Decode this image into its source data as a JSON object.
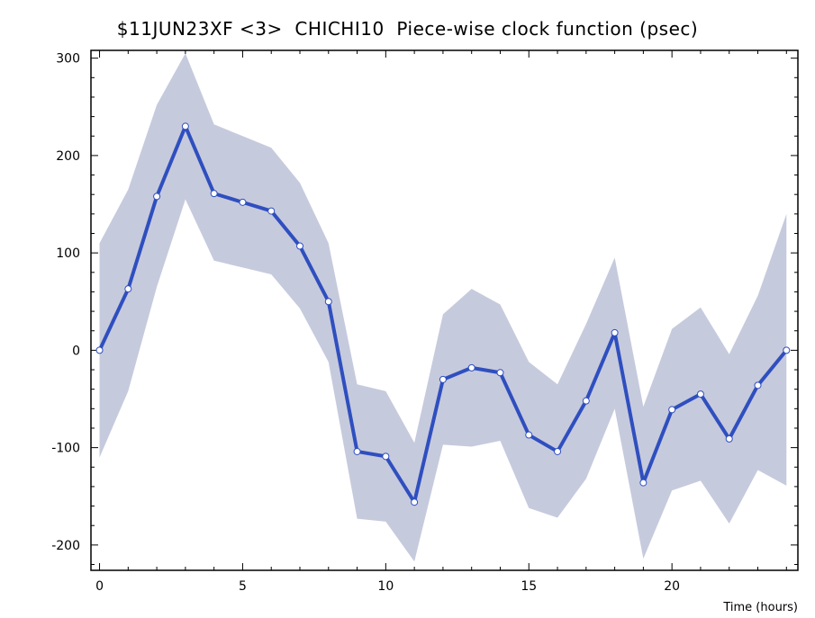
{
  "chart_data": {
    "type": "line",
    "title": "$11JUN23XF <3>  CHICHI10  Piece-wise clock function (psec)",
    "xlabel": "Time (hours)",
    "ylabel": "",
    "xlim": [
      -0.3,
      24.4
    ],
    "ylim": [
      -226,
      308
    ],
    "xticks": [
      0,
      5,
      10,
      15,
      20
    ],
    "yticks": [
      -200,
      -100,
      0,
      100,
      200,
      300
    ],
    "grid": false,
    "x": [
      0,
      1,
      2,
      3,
      4,
      5,
      6,
      7,
      8,
      9,
      10,
      11,
      12,
      13,
      14,
      15,
      16,
      17,
      18,
      19,
      20,
      21,
      22,
      23,
      24
    ],
    "series": [
      {
        "values": [
          0,
          63,
          158,
          230,
          161,
          152,
          143,
          107,
          50,
          -104,
          -109,
          -156,
          -30,
          -18,
          -23,
          -87,
          -104,
          -52,
          18,
          -136,
          -61,
          -45,
          -91,
          -36,
          0
        ]
      }
    ],
    "band": {
      "upper": [
        110,
        165,
        252,
        305,
        232,
        220,
        208,
        172,
        110,
        -35,
        -42,
        -95,
        37,
        63,
        47,
        -12,
        -35,
        27,
        95,
        -58,
        22,
        44,
        -4,
        56,
        140
      ],
      "lower": [
        -110,
        -42,
        65,
        155,
        92,
        85,
        78,
        43,
        -12,
        -173,
        -176,
        -217,
        -97,
        -99,
        -93,
        -162,
        -172,
        -132,
        -60,
        -214,
        -144,
        -134,
        -178,
        -123,
        -139
      ]
    },
    "colors": {
      "line": "#2f4fbf",
      "marker_fill": "#ffffff",
      "band": "#c6cadd"
    }
  }
}
